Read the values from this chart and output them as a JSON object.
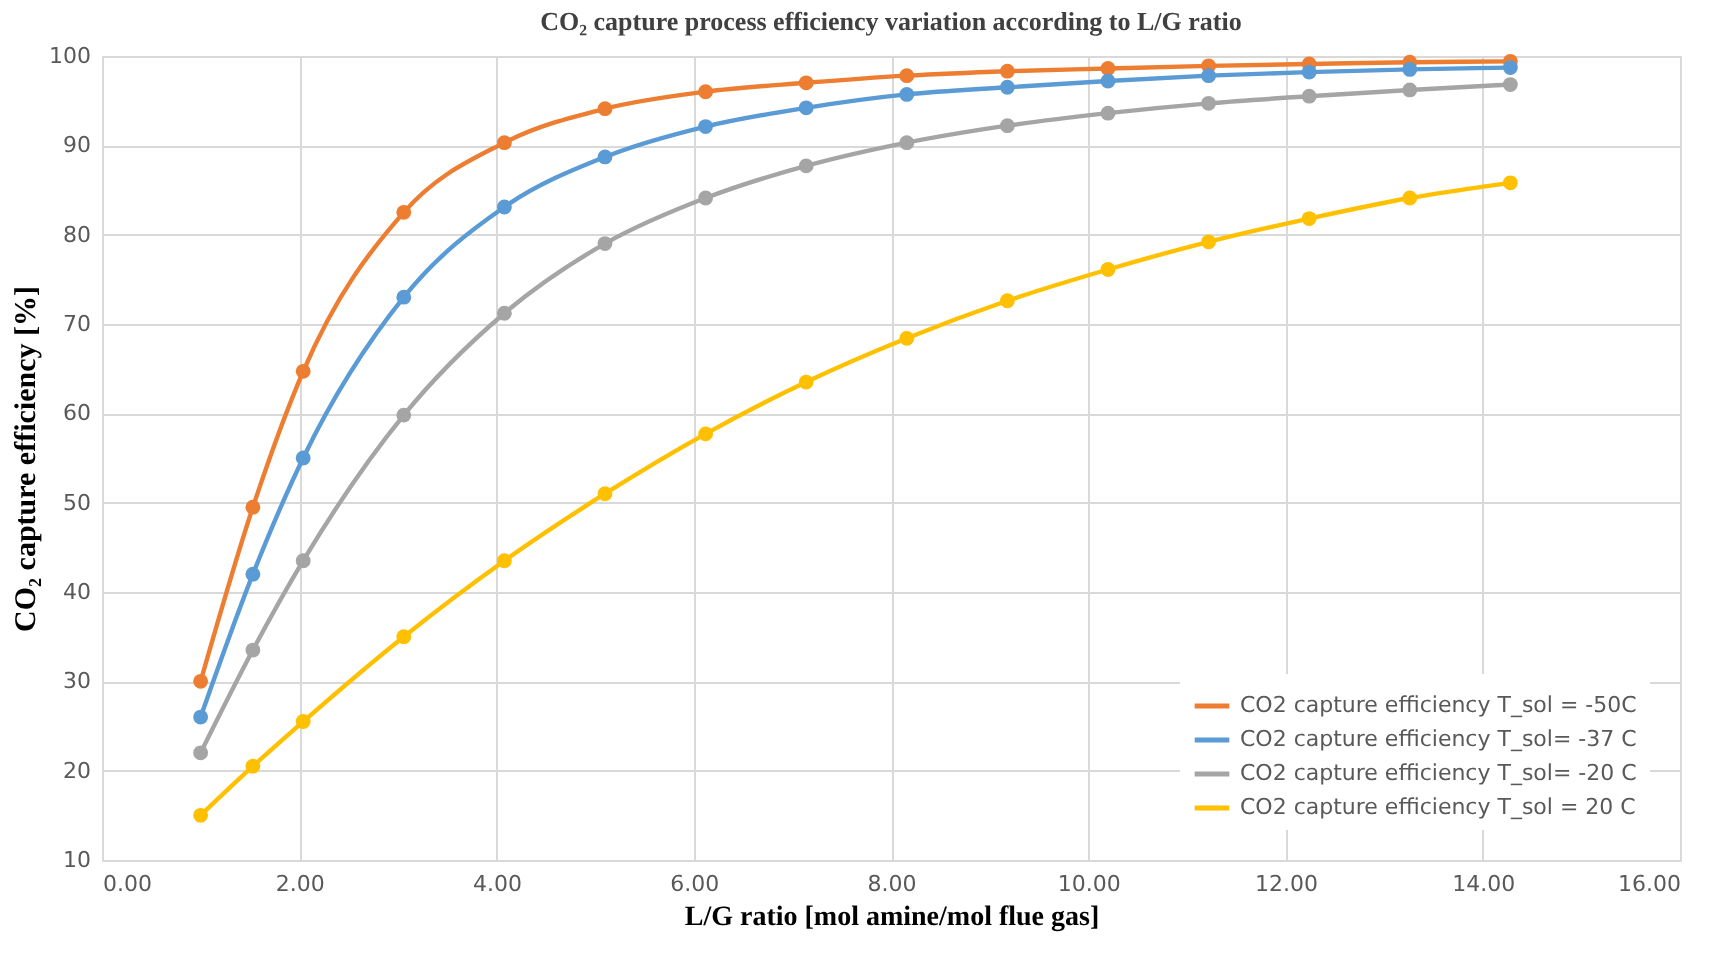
{
  "chart_data": {
    "type": "line",
    "title": "CO₂ capture process efficiency variation  according to L/G ratio",
    "xlabel": "L/G ratio [mol amine/mol flue gas]",
    "ylabel": "CO₂ capture efficiency [%]",
    "x": [
      1.0,
      1.53,
      2.04,
      3.06,
      4.08,
      5.1,
      6.12,
      7.14,
      8.16,
      9.18,
      10.2,
      11.22,
      12.24,
      13.26,
      14.28
    ],
    "xlim": [
      0,
      16
    ],
    "xticks": [
      {
        "value": 0,
        "label": "0.00"
      },
      {
        "value": 2,
        "label": "2.00"
      },
      {
        "value": 4,
        "label": "4.00"
      },
      {
        "value": 6,
        "label": "6.00"
      },
      {
        "value": 8,
        "label": "8.00"
      },
      {
        "value": 10,
        "label": "10.00"
      },
      {
        "value": 12,
        "label": "12.00"
      },
      {
        "value": 14,
        "label": "14.00"
      },
      {
        "value": 16,
        "label": "16.00"
      }
    ],
    "ylim": [
      10,
      100
    ],
    "yticks": [
      10,
      20,
      30,
      40,
      50,
      60,
      70,
      80,
      90,
      100
    ],
    "grid": true,
    "legend": "bottom right",
    "marker": "circle",
    "line_style": "solid",
    "series": [
      {
        "name": "CO2 capture efficiency T_sol = -50C",
        "color": "#ed7d31",
        "values": [
          30,
          49.5,
          64.7,
          82.5,
          90.3,
          94.1,
          96.0,
          97.0,
          97.8,
          98.3,
          98.6,
          98.9,
          99.1,
          99.3,
          99.4
        ]
      },
      {
        "name": "CO2 capture efficiency T_sol= -37 C",
        "color": "#5b9bd5",
        "values": [
          26,
          42,
          55,
          73,
          83.1,
          88.7,
          92.1,
          94.2,
          95.7,
          96.5,
          97.2,
          97.8,
          98.2,
          98.5,
          98.7
        ]
      },
      {
        "name": "CO2 capture efficiency T_sol= -20 C",
        "color": "#a5a5a5",
        "values": [
          22,
          33.5,
          43.5,
          59.8,
          71.2,
          79,
          84.1,
          87.7,
          90.3,
          92.2,
          93.6,
          94.7,
          95.5,
          96.2,
          96.8
        ]
      },
      {
        "name": "CO2 capture efficiency T_sol = 20 C",
        "color": "#ffc000",
        "values": [
          15,
          20.5,
          25.5,
          35,
          43.5,
          51,
          57.7,
          63.5,
          68.4,
          72.6,
          76.1,
          79.2,
          81.8,
          84.1,
          85.8
        ]
      }
    ]
  }
}
